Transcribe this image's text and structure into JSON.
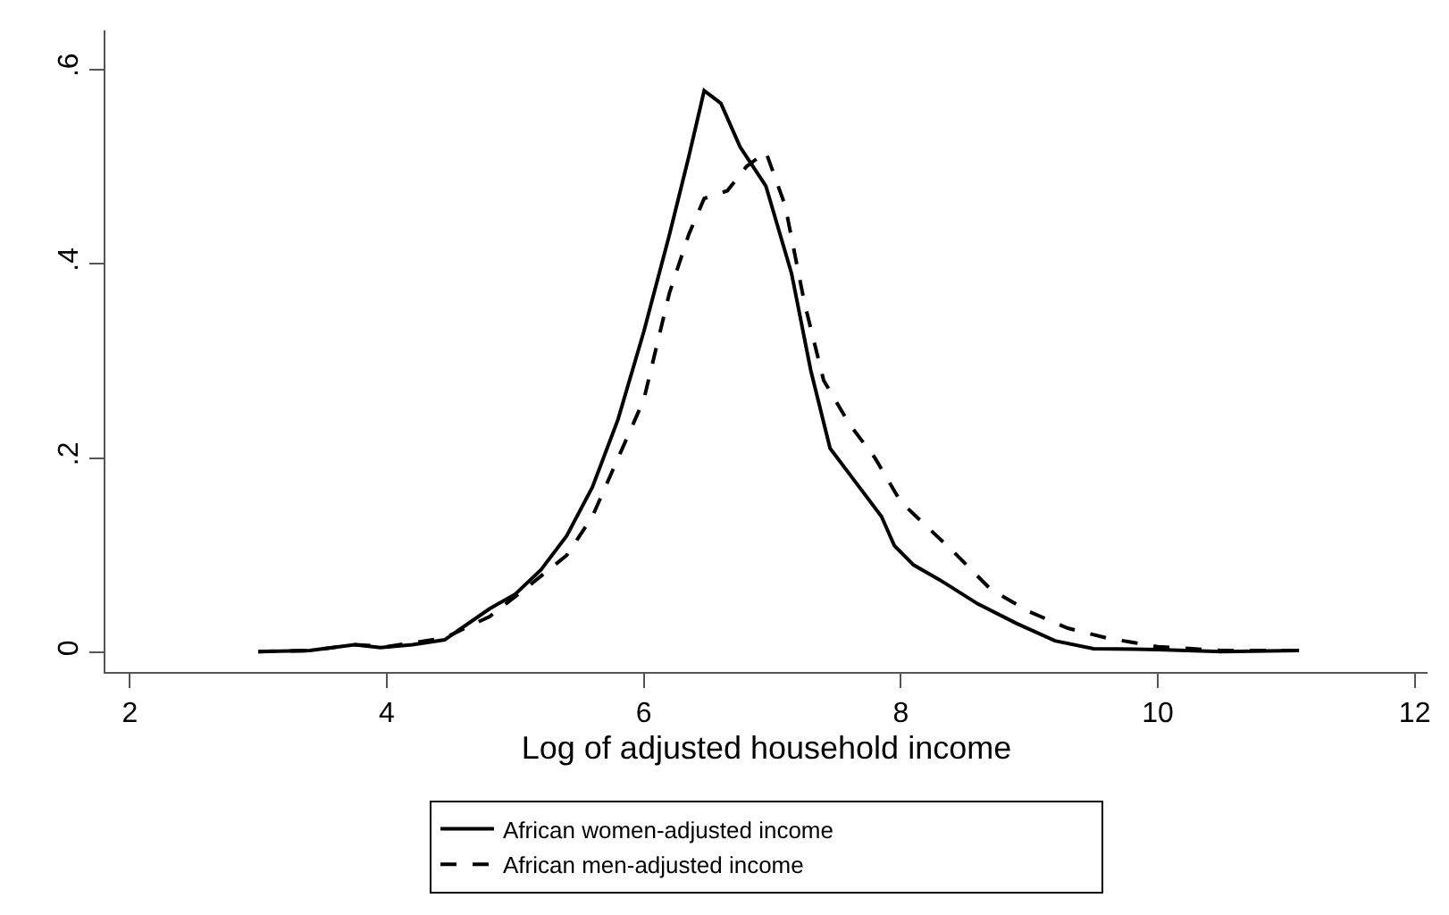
{
  "chart_data": {
    "type": "line",
    "xlabel": "Log of adjusted household income",
    "xlim": [
      1.81,
      12.1
    ],
    "xticks": [
      2,
      4,
      6,
      8,
      10,
      12
    ],
    "ylim": [
      -0.02,
      0.64
    ],
    "yticks": [
      {
        "value": 0,
        "label": "0"
      },
      {
        "value": 0.2,
        "label": ".2"
      },
      {
        "value": 0.4,
        "label": ".4"
      },
      {
        "value": 0.6,
        "label": ".6"
      }
    ],
    "grid": false,
    "legend": "bottom",
    "marker": "none",
    "series": [
      {
        "name": "African women-adjusted income",
        "color": "#000000",
        "line_style": "solid",
        "x": [
          3.0,
          3.4,
          3.75,
          3.95,
          4.2,
          4.45,
          4.8,
          5.0,
          5.2,
          5.4,
          5.6,
          5.8,
          6.0,
          6.2,
          6.35,
          6.47,
          6.6,
          6.75,
          6.95,
          7.15,
          7.3,
          7.45,
          7.65,
          7.85,
          7.95,
          8.1,
          8.3,
          8.6,
          8.9,
          9.2,
          9.5,
          10.0,
          10.5,
          11.1
        ],
        "values": [
          0.001,
          0.002,
          0.008,
          0.005,
          0.008,
          0.013,
          0.045,
          0.06,
          0.085,
          0.12,
          0.17,
          0.24,
          0.33,
          0.43,
          0.51,
          0.578,
          0.565,
          0.52,
          0.48,
          0.39,
          0.29,
          0.21,
          0.175,
          0.14,
          0.11,
          0.09,
          0.075,
          0.05,
          0.03,
          0.012,
          0.004,
          0.003,
          0.001,
          0.002
        ]
      },
      {
        "name": "African men-adjusted income",
        "color": "#000000",
        "line_style": "dashed",
        "x": [
          3.0,
          3.4,
          3.75,
          4.0,
          4.45,
          4.8,
          5.1,
          5.4,
          5.6,
          5.8,
          6.0,
          6.2,
          6.35,
          6.47,
          6.65,
          6.8,
          6.95,
          7.1,
          7.25,
          7.4,
          7.6,
          7.8,
          8.0,
          8.2,
          8.4,
          8.7,
          9.0,
          9.3,
          9.6,
          10.0,
          10.5,
          11.1
        ],
        "values": [
          0.001,
          0.002,
          0.008,
          0.006,
          0.015,
          0.037,
          0.068,
          0.1,
          0.14,
          0.2,
          0.26,
          0.37,
          0.43,
          0.467,
          0.475,
          0.5,
          0.515,
          0.46,
          0.36,
          0.28,
          0.235,
          0.2,
          0.155,
          0.13,
          0.105,
          0.065,
          0.042,
          0.025,
          0.015,
          0.006,
          0.002,
          0.002
        ]
      }
    ]
  }
}
